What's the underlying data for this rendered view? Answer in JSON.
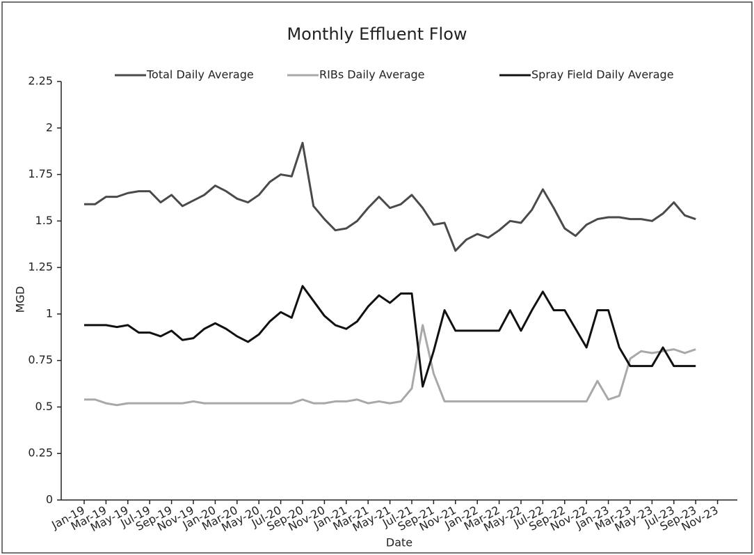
{
  "chart_data": {
    "type": "line",
    "title": "Monthly Effluent Flow",
    "x_label": "Date",
    "y_label": "MGD",
    "categories": [
      "Jan-19",
      null,
      "Mar-19",
      null,
      "May-19",
      null,
      "Jul-19",
      null,
      "Sep-19",
      null,
      "Nov-19",
      null,
      "Jan-20",
      null,
      "Mar-20",
      null,
      "May-20",
      null,
      "Jul-20",
      null,
      "Sep-20",
      null,
      "Nov-20",
      null,
      "Jan-21",
      null,
      "Mar-21",
      null,
      "May-21",
      null,
      "Jul-21",
      null,
      "Sep-21",
      null,
      "Nov-21",
      null,
      "Jan-22",
      null,
      "Mar-22",
      null,
      "May-22",
      null,
      "Jul-22",
      null,
      "Sep-22",
      null,
      "Nov-22",
      null,
      "Jan-23",
      null,
      "Mar-23",
      null,
      "May-23",
      null,
      "Jul-23",
      null,
      "Sep-23",
      null,
      "Nov-23"
    ],
    "series": [
      {
        "name": "Total Daily Average",
        "color": "#4a4a4a",
        "values": [
          1.59,
          1.59,
          1.63,
          1.63,
          1.65,
          1.66,
          1.66,
          1.6,
          1.64,
          1.58,
          1.61,
          1.64,
          1.69,
          1.66,
          1.62,
          1.6,
          1.64,
          1.71,
          1.75,
          1.74,
          1.92,
          1.58,
          1.51,
          1.45,
          1.46,
          1.5,
          1.57,
          1.63,
          1.57,
          1.59,
          1.64,
          1.57,
          1.48,
          1.49,
          1.34,
          1.4,
          1.43,
          1.41,
          1.45,
          1.5,
          1.49,
          1.56,
          1.67,
          1.57,
          1.46,
          1.42,
          1.48,
          1.51,
          1.52,
          1.52,
          1.51,
          1.51,
          1.5,
          1.54,
          1.6,
          1.53,
          1.51,
          null,
          null
        ]
      },
      {
        "name": "RIBs Daily Average",
        "color": "#a8a8a8",
        "values": [
          0.54,
          0.54,
          0.52,
          0.51,
          0.52,
          0.52,
          0.52,
          0.52,
          0.52,
          0.52,
          0.53,
          0.52,
          0.52,
          0.52,
          0.52,
          0.52,
          0.52,
          0.52,
          0.52,
          0.52,
          0.54,
          0.52,
          0.52,
          0.53,
          0.53,
          0.54,
          0.52,
          0.53,
          0.52,
          0.53,
          0.6,
          0.94,
          0.68,
          0.53,
          0.53,
          0.53,
          0.53,
          0.53,
          0.53,
          0.53,
          0.53,
          0.53,
          0.53,
          0.53,
          0.53,
          0.53,
          0.53,
          0.64,
          0.54,
          0.56,
          0.76,
          0.8,
          0.79,
          0.8,
          0.81,
          0.79,
          0.81,
          null,
          null
        ]
      },
      {
        "name": "Spray Field Daily Average",
        "color": "#111111",
        "values": [
          0.94,
          0.94,
          0.94,
          0.93,
          0.94,
          0.9,
          0.9,
          0.88,
          0.91,
          0.86,
          0.87,
          0.92,
          0.95,
          0.92,
          0.88,
          0.85,
          0.89,
          0.96,
          1.01,
          0.98,
          1.15,
          1.07,
          0.99,
          0.94,
          0.92,
          0.96,
          1.04,
          1.1,
          1.06,
          1.11,
          1.11,
          0.61,
          0.8,
          1.02,
          0.91,
          0.91,
          0.91,
          0.91,
          0.91,
          1.02,
          0.91,
          1.02,
          1.12,
          1.02,
          1.02,
          0.92,
          0.82,
          1.02,
          1.02,
          0.82,
          0.72,
          0.72,
          0.72,
          0.82,
          0.72,
          0.72,
          0.72,
          null,
          null
        ]
      }
    ],
    "ylim": [
      0,
      2.25
    ],
    "yticks": [
      0,
      0.25,
      0.5,
      0.75,
      1,
      1.25,
      1.5,
      1.75,
      2,
      2.25
    ],
    "legend": "top",
    "grid": false
  }
}
